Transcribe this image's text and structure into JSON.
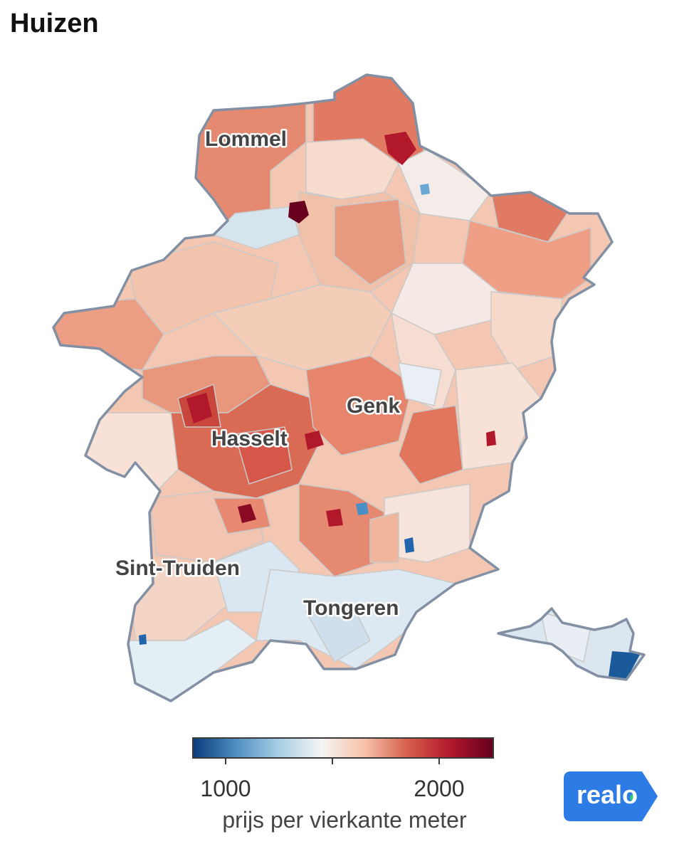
{
  "title": "Huizen",
  "cities": [
    {
      "name": "Lommel"
    },
    {
      "name": "Genk"
    },
    {
      "name": "Hasselt"
    },
    {
      "name": "Sint-Truiden"
    },
    {
      "name": "Tongeren"
    }
  ],
  "legend": {
    "title": "prijs per vierkante meter",
    "min": 850,
    "max": 2250,
    "ticks": [
      {
        "value": 1000,
        "label": "1000"
      },
      {
        "value": 1500,
        "label": ""
      },
      {
        "value": 2000,
        "label": "2000"
      }
    ],
    "colors": [
      "#0b3d7e",
      "#4f8fc2",
      "#a8cfe6",
      "#f5f5f5",
      "#f6c2a8",
      "#d6604d",
      "#b2182b",
      "#67001f"
    ]
  },
  "logo": {
    "text": "realo",
    "color": "#2d7be5",
    "dot_color": "#2ecc71"
  }
}
